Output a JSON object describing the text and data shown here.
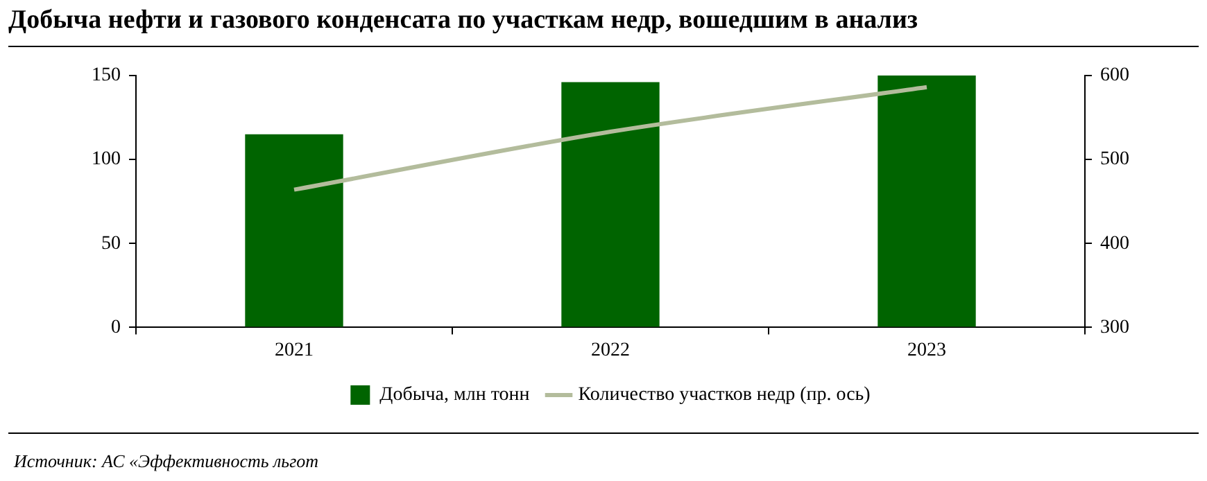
{
  "chart_data": {
    "type": "bar",
    "title": "Добыча нефти и газового конденсата по участкам недр, вошедшим в анализ",
    "categories": [
      "2021",
      "2022",
      "2023"
    ],
    "series": [
      {
        "name": "Добыча, млн тонн",
        "color": "#006400",
        "values": [
          115,
          146,
          150
        ]
      },
      {
        "name": "Количество участков недр (пр. ось)",
        "type": "line",
        "axis": "y2",
        "color": "#b3bc9c",
        "values": [
          464,
          533,
          586
        ]
      }
    ],
    "ylim": [
      0,
      150
    ],
    "yticks": [
      0,
      50,
      100,
      150
    ],
    "y2lim": [
      300,
      600
    ],
    "y2ticks": [
      300,
      400,
      500,
      600
    ],
    "grid": false,
    "legend": "bottom",
    "marker": "none",
    "line_style": "solid",
    "annotations": [
      "Источник: АС «Эффективность льгот"
    ]
  }
}
